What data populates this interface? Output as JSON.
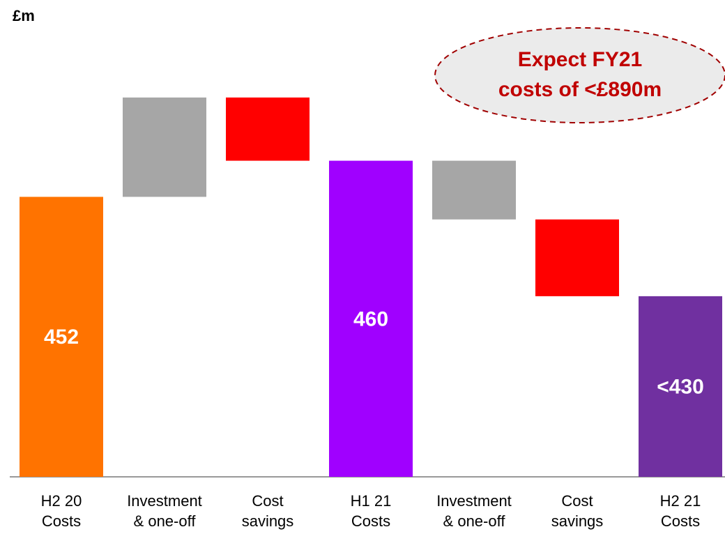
{
  "chart_data": {
    "type": "waterfall",
    "unit_label": "£m",
    "categories": [
      [
        "H2 20",
        "Costs"
      ],
      [
        "Investment",
        "& one-off"
      ],
      [
        "Cost",
        "savings"
      ],
      [
        "H1 21",
        "Costs"
      ],
      [
        "Investment",
        "& one-off"
      ],
      [
        "Cost",
        "savings"
      ],
      [
        "H2 21",
        "Costs"
      ]
    ],
    "values": [
      452,
      22,
      -14,
      460,
      -13,
      -17,
      430
    ],
    "value_labels": [
      "452",
      null,
      null,
      "460",
      null,
      null,
      "<430"
    ],
    "is_total": [
      true,
      false,
      false,
      true,
      false,
      false,
      true
    ],
    "colors": [
      "#ff7300",
      "#a6a6a6",
      "#ff0000",
      "#a000ff",
      "#a6a6a6",
      "#ff0000",
      "#7030a0"
    ],
    "ylim": [
      390,
      480
    ],
    "annotation": [
      "Expect FY21",
      "costs of <£890m"
    ]
  }
}
